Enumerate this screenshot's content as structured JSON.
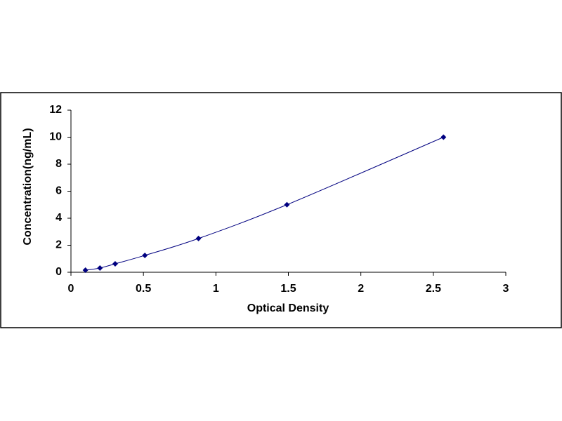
{
  "chart_data": {
    "type": "scatter",
    "x_label": "Optical Density",
    "y_label": "Concentration(ng/mL)",
    "x": [
      0.1,
      0.2,
      0.305,
      0.51,
      0.88,
      1.49,
      2.57
    ],
    "values": [
      0.156,
      0.312,
      0.625,
      1.25,
      2.5,
      5,
      10
    ],
    "color": "#000080",
    "line": true,
    "xlim": [
      0,
      3
    ],
    "xticks": [
      0,
      0.5,
      1,
      1.5,
      2,
      2.5,
      3
    ],
    "ylim": [
      0,
      12
    ],
    "yticks": [
      0,
      2,
      4,
      6,
      8,
      10,
      12
    ]
  }
}
